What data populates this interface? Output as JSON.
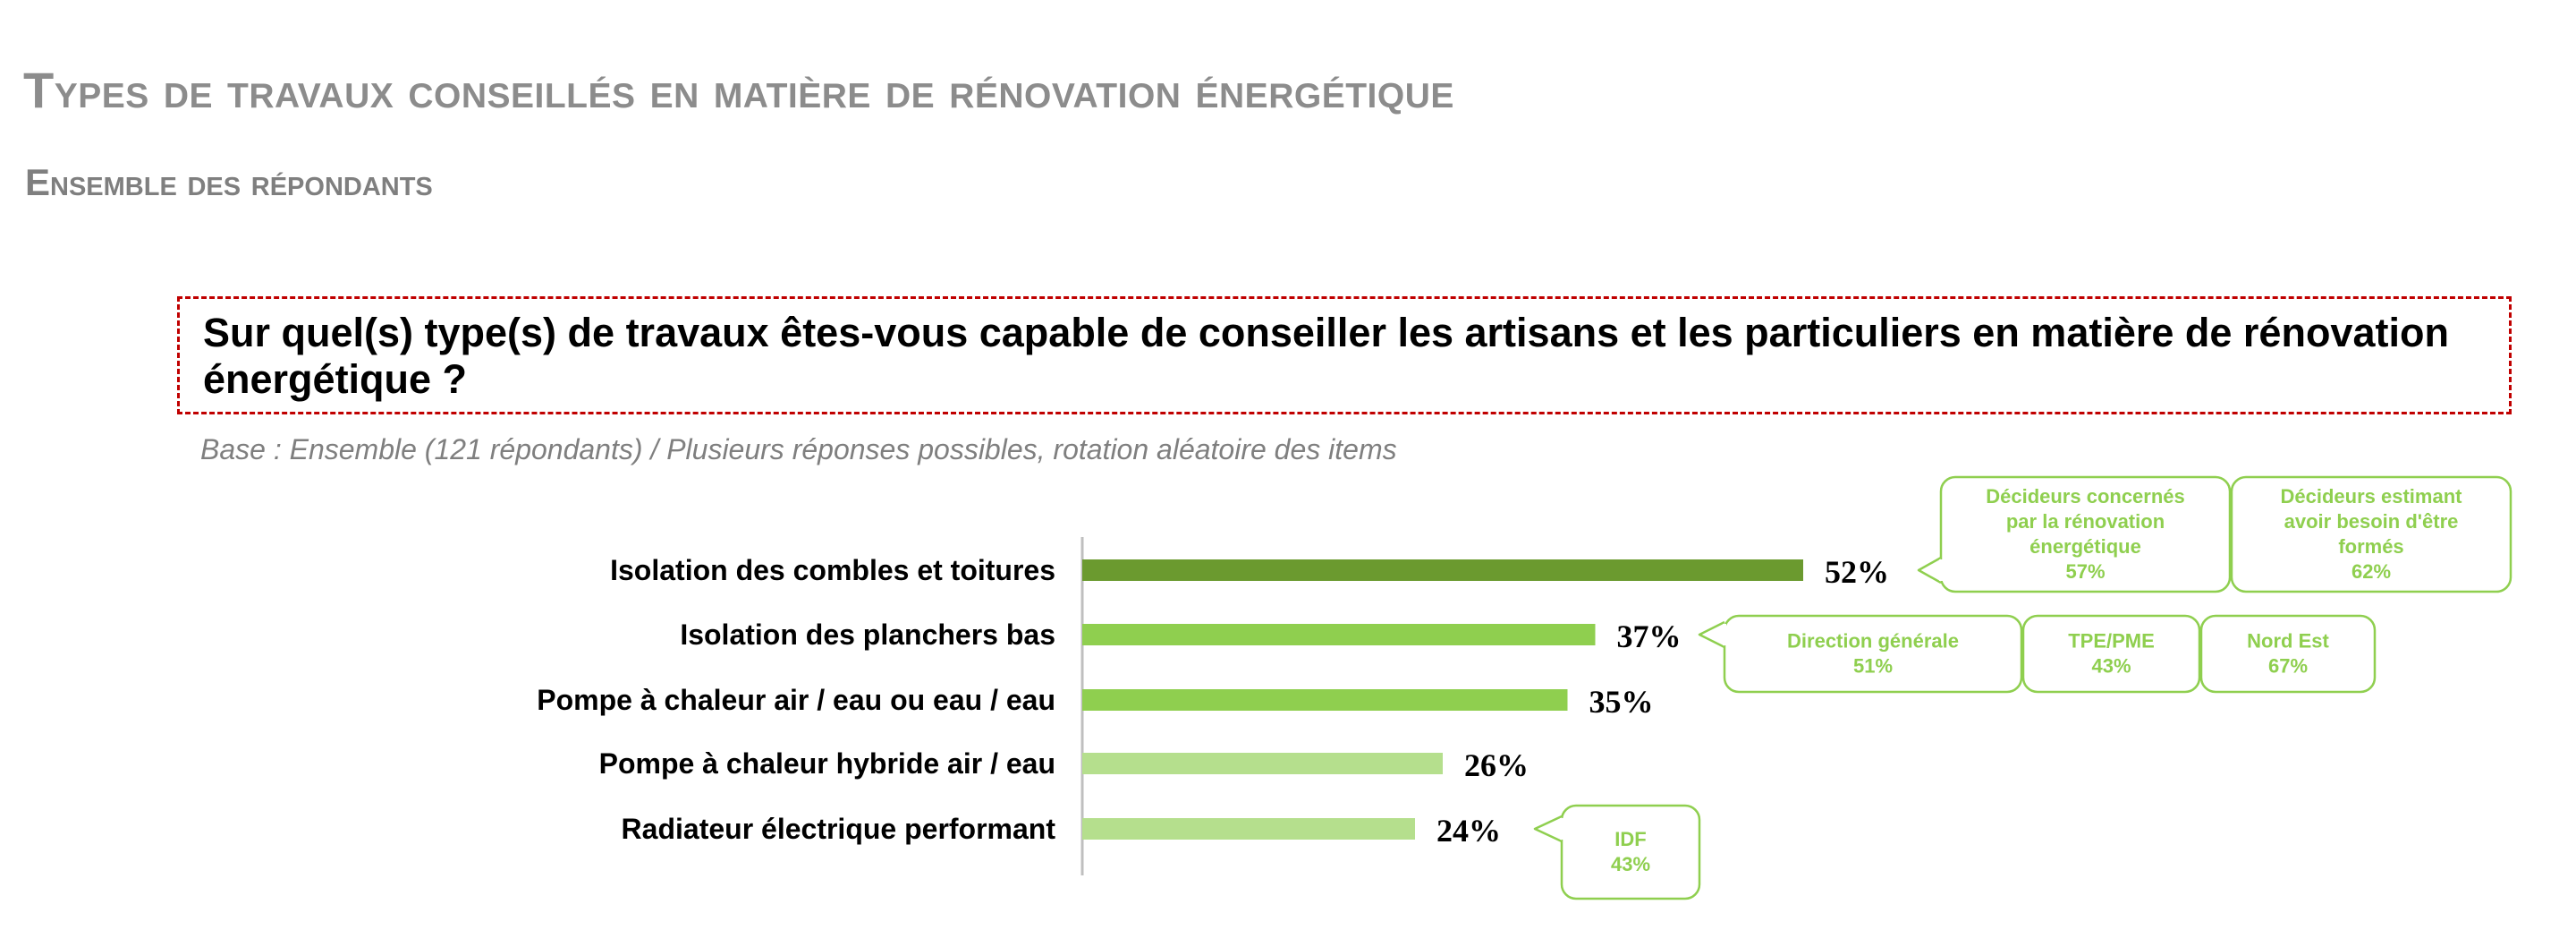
{
  "header": {
    "title": "Types de travaux conseillés en matière de rénovation énergétique",
    "subtitle": "Ensemble des répondants"
  },
  "question": {
    "text": "Sur quel(s) type(s) de travaux êtes-vous capable de conseiller les artisans et les particuliers en matière de rénovation énergétique ?",
    "base_note": "Base : Ensemble (121 répondants) / Plusieurs réponses possibles, rotation aléatoire des items"
  },
  "colors": {
    "bar_dark": "#6b9a2f",
    "bar_mid": "#8fcf4f",
    "bar_light": "#b5df8d",
    "callout": "#8fcf4f",
    "axis": "#bfbfbf"
  },
  "chart_data": {
    "type": "bar",
    "orientation": "horizontal",
    "categories": [
      "Isolation des combles et toitures",
      "Isolation des planchers bas",
      "Pompe à chaleur air / eau ou eau / eau",
      "Pompe à chaleur hybride air / eau",
      "Radiateur électrique performant"
    ],
    "values": [
      52,
      37,
      35,
      26,
      24
    ],
    "value_labels": [
      "52%",
      "37%",
      "35%",
      "26%",
      "24%"
    ],
    "bar_shades": [
      "dark",
      "mid",
      "mid",
      "light",
      "light"
    ],
    "xlim": [
      0,
      100
    ],
    "grid": false,
    "callouts": [
      {
        "row": 0,
        "boxes": [
          {
            "lines": [
              "Décideurs concernés",
              "par la rénovation",
              "énergétique",
              "57%"
            ]
          },
          {
            "lines": [
              "Décideurs estimant",
              "avoir besoin d'être",
              "formés",
              "62%"
            ]
          }
        ]
      },
      {
        "row": 1,
        "boxes": [
          {
            "lines": [
              "Direction générale",
              "51%"
            ]
          },
          {
            "lines": [
              "TPE/PME",
              "43%"
            ]
          },
          {
            "lines": [
              "Nord Est",
              "67%"
            ]
          }
        ]
      },
      {
        "row": 4,
        "boxes": [
          {
            "lines": [
              "IDF",
              "43%"
            ]
          }
        ]
      }
    ]
  }
}
